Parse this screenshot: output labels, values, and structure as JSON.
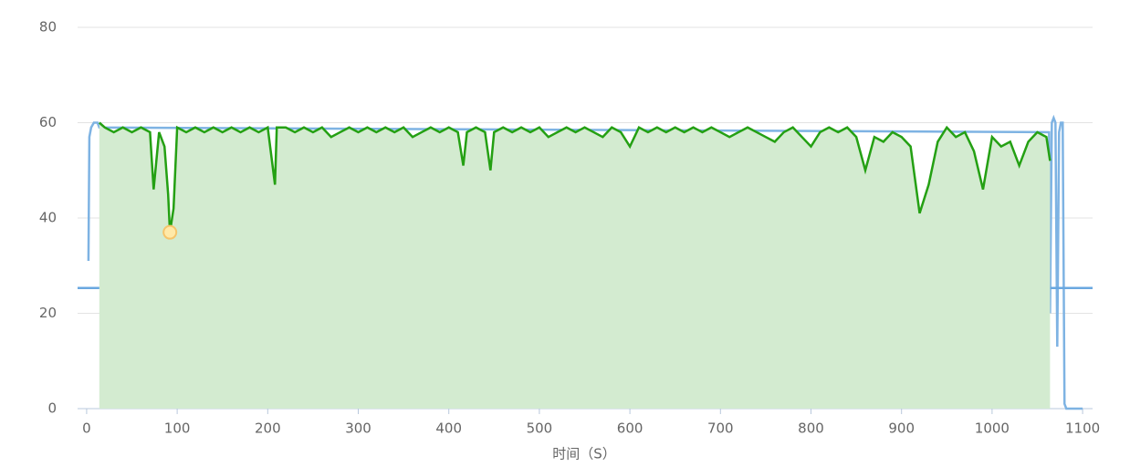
{
  "chart_data": {
    "type": "line",
    "x_label": "时间（S）",
    "xlim": [
      -10,
      1111
    ],
    "xticks": [
      0,
      100,
      200,
      300,
      400,
      500,
      600,
      700,
      800,
      900,
      1000,
      1100
    ],
    "ylim": [
      0,
      80
    ],
    "yticks": [
      0,
      20,
      40,
      60,
      80
    ],
    "grid": true,
    "mark_line": 25.3,
    "series": [
      {
        "color": "#7eb3e3",
        "area": false,
        "x": [
          2,
          3,
          5,
          8,
          12,
          14,
          1063,
          1064,
          1066,
          1068,
          1070,
          1072,
          1074,
          1076,
          1078,
          1080,
          1082,
          1090,
          1100
        ],
        "values": [
          31,
          57,
          59,
          60,
          60,
          59,
          58,
          20,
          60,
          61,
          60,
          13,
          58,
          60,
          60,
          1,
          0,
          0,
          0
        ]
      },
      {
        "color": "#24a013",
        "area": true,
        "area_color": "#d3ebd0",
        "mark_point": {
          "x": 92,
          "y": 37
        },
        "x": [
          14,
          20,
          30,
          40,
          50,
          60,
          70,
          74,
          80,
          86,
          90,
          92,
          96,
          100,
          110,
          120,
          130,
          140,
          150,
          160,
          170,
          180,
          190,
          200,
          208,
          210,
          220,
          230,
          240,
          250,
          260,
          270,
          280,
          290,
          300,
          310,
          320,
          330,
          340,
          350,
          360,
          370,
          380,
          390,
          400,
          410,
          416,
          420,
          430,
          440,
          446,
          450,
          460,
          470,
          480,
          490,
          500,
          510,
          520,
          530,
          540,
          550,
          560,
          570,
          580,
          590,
          600,
          610,
          620,
          630,
          640,
          650,
          660,
          670,
          680,
          690,
          700,
          710,
          720,
          730,
          740,
          750,
          760,
          770,
          780,
          790,
          800,
          810,
          820,
          830,
          840,
          850,
          860,
          870,
          880,
          890,
          900,
          910,
          920,
          930,
          940,
          950,
          960,
          970,
          980,
          990,
          1000,
          1010,
          1020,
          1030,
          1040,
          1050,
          1060,
          1064
        ],
        "values": [
          60,
          59,
          58,
          59,
          58,
          59,
          58,
          46,
          58,
          55,
          45,
          37,
          42,
          59,
          58,
          59,
          58,
          59,
          58,
          59,
          58,
          59,
          58,
          59,
          47,
          59,
          59,
          58,
          59,
          58,
          59,
          57,
          58,
          59,
          58,
          59,
          58,
          59,
          58,
          59,
          57,
          58,
          59,
          58,
          59,
          58,
          51,
          58,
          59,
          58,
          50,
          58,
          59,
          58,
          59,
          58,
          59,
          57,
          58,
          59,
          58,
          59,
          58,
          57,
          59,
          58,
          55,
          59,
          58,
          59,
          58,
          59,
          58,
          59,
          58,
          59,
          58,
          57,
          58,
          59,
          58,
          57,
          56,
          58,
          59,
          57,
          55,
          58,
          59,
          58,
          59,
          57,
          50,
          57,
          56,
          58,
          57,
          55,
          41,
          47,
          56,
          59,
          57,
          58,
          54,
          46,
          57,
          55,
          56,
          51,
          56,
          58,
          57,
          52
        ]
      }
    ]
  }
}
